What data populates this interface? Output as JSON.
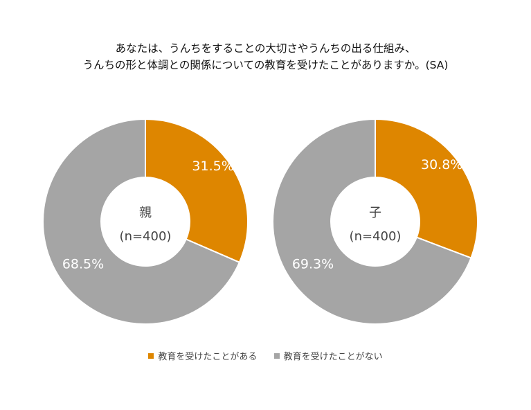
{
  "title_lines": [
    "あなたは、うんちをすることの大切さやうんちの出る仕組み、",
    "うんちの形と体調との関係についての教育を受けたことがありますか。(SA)"
  ],
  "colors": {
    "has": "#DE8600",
    "not": "#A5A5A5"
  },
  "chart_data": [
    {
      "type": "pie",
      "center_label": "親",
      "center_sublabel": "(n=400)",
      "categories": [
        "教育を受けたことがある",
        "教育を受けたことがない"
      ],
      "values": [
        31.5,
        68.5
      ],
      "value_labels": [
        "31.5%",
        "68.5%"
      ]
    },
    {
      "type": "pie",
      "center_label": "子",
      "center_sublabel": "(n=400)",
      "categories": [
        "教育を受けたことがある",
        "教育を受けたことがない"
      ],
      "values": [
        30.8,
        69.3
      ],
      "value_labels": [
        "30.8%",
        "69.3%"
      ]
    }
  ],
  "legend": [
    {
      "label": "教育を受けたことがある",
      "color_key": "has"
    },
    {
      "label": "教育を受けたことがない",
      "color_key": "not"
    }
  ]
}
